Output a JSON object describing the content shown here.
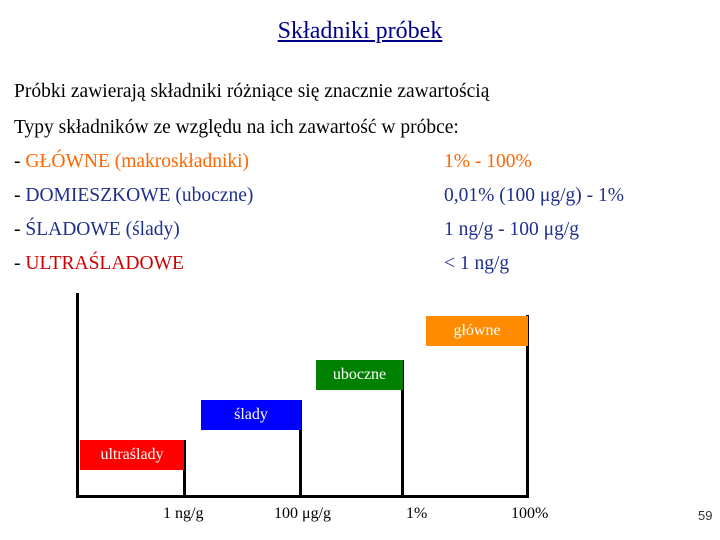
{
  "title": "Składniki próbek",
  "intro": {
    "line1": "Próbki zawierają składniki różniące się znacznie zawartością",
    "line2": "Typy składników ze względu na ich zawartość w próbce:"
  },
  "types": [
    {
      "dash": "- ",
      "label": "GŁÓWNE (makroskładniki)",
      "range": "1% - 100%"
    },
    {
      "dash": "- ",
      "label": "DOMIESZKOWE (uboczne)",
      "range": "0,01% (100 μg/g) - 1%"
    },
    {
      "dash": "- ",
      "label": "ŚLADOWE (ślady)",
      "range": "1 ng/g - 100 μg/g"
    },
    {
      "dash": "- ",
      "label": "ULTRAŚLADOWE",
      "range": "< 1 ng/g"
    }
  ],
  "diagram": {
    "boxes": {
      "glowne": "główne",
      "uboczne": "uboczne",
      "slady": "ślady",
      "ultraslady": "ultraślady"
    },
    "ticks": [
      "1 ng/g",
      "100 μg/g",
      "1%",
      "100%"
    ]
  },
  "colors": {
    "title": "#00008b",
    "glowne": "#ff8c00",
    "uboczne": "#008000",
    "slady": "#0000ff",
    "ultraslady": "#ff0000"
  },
  "page_number": "59"
}
